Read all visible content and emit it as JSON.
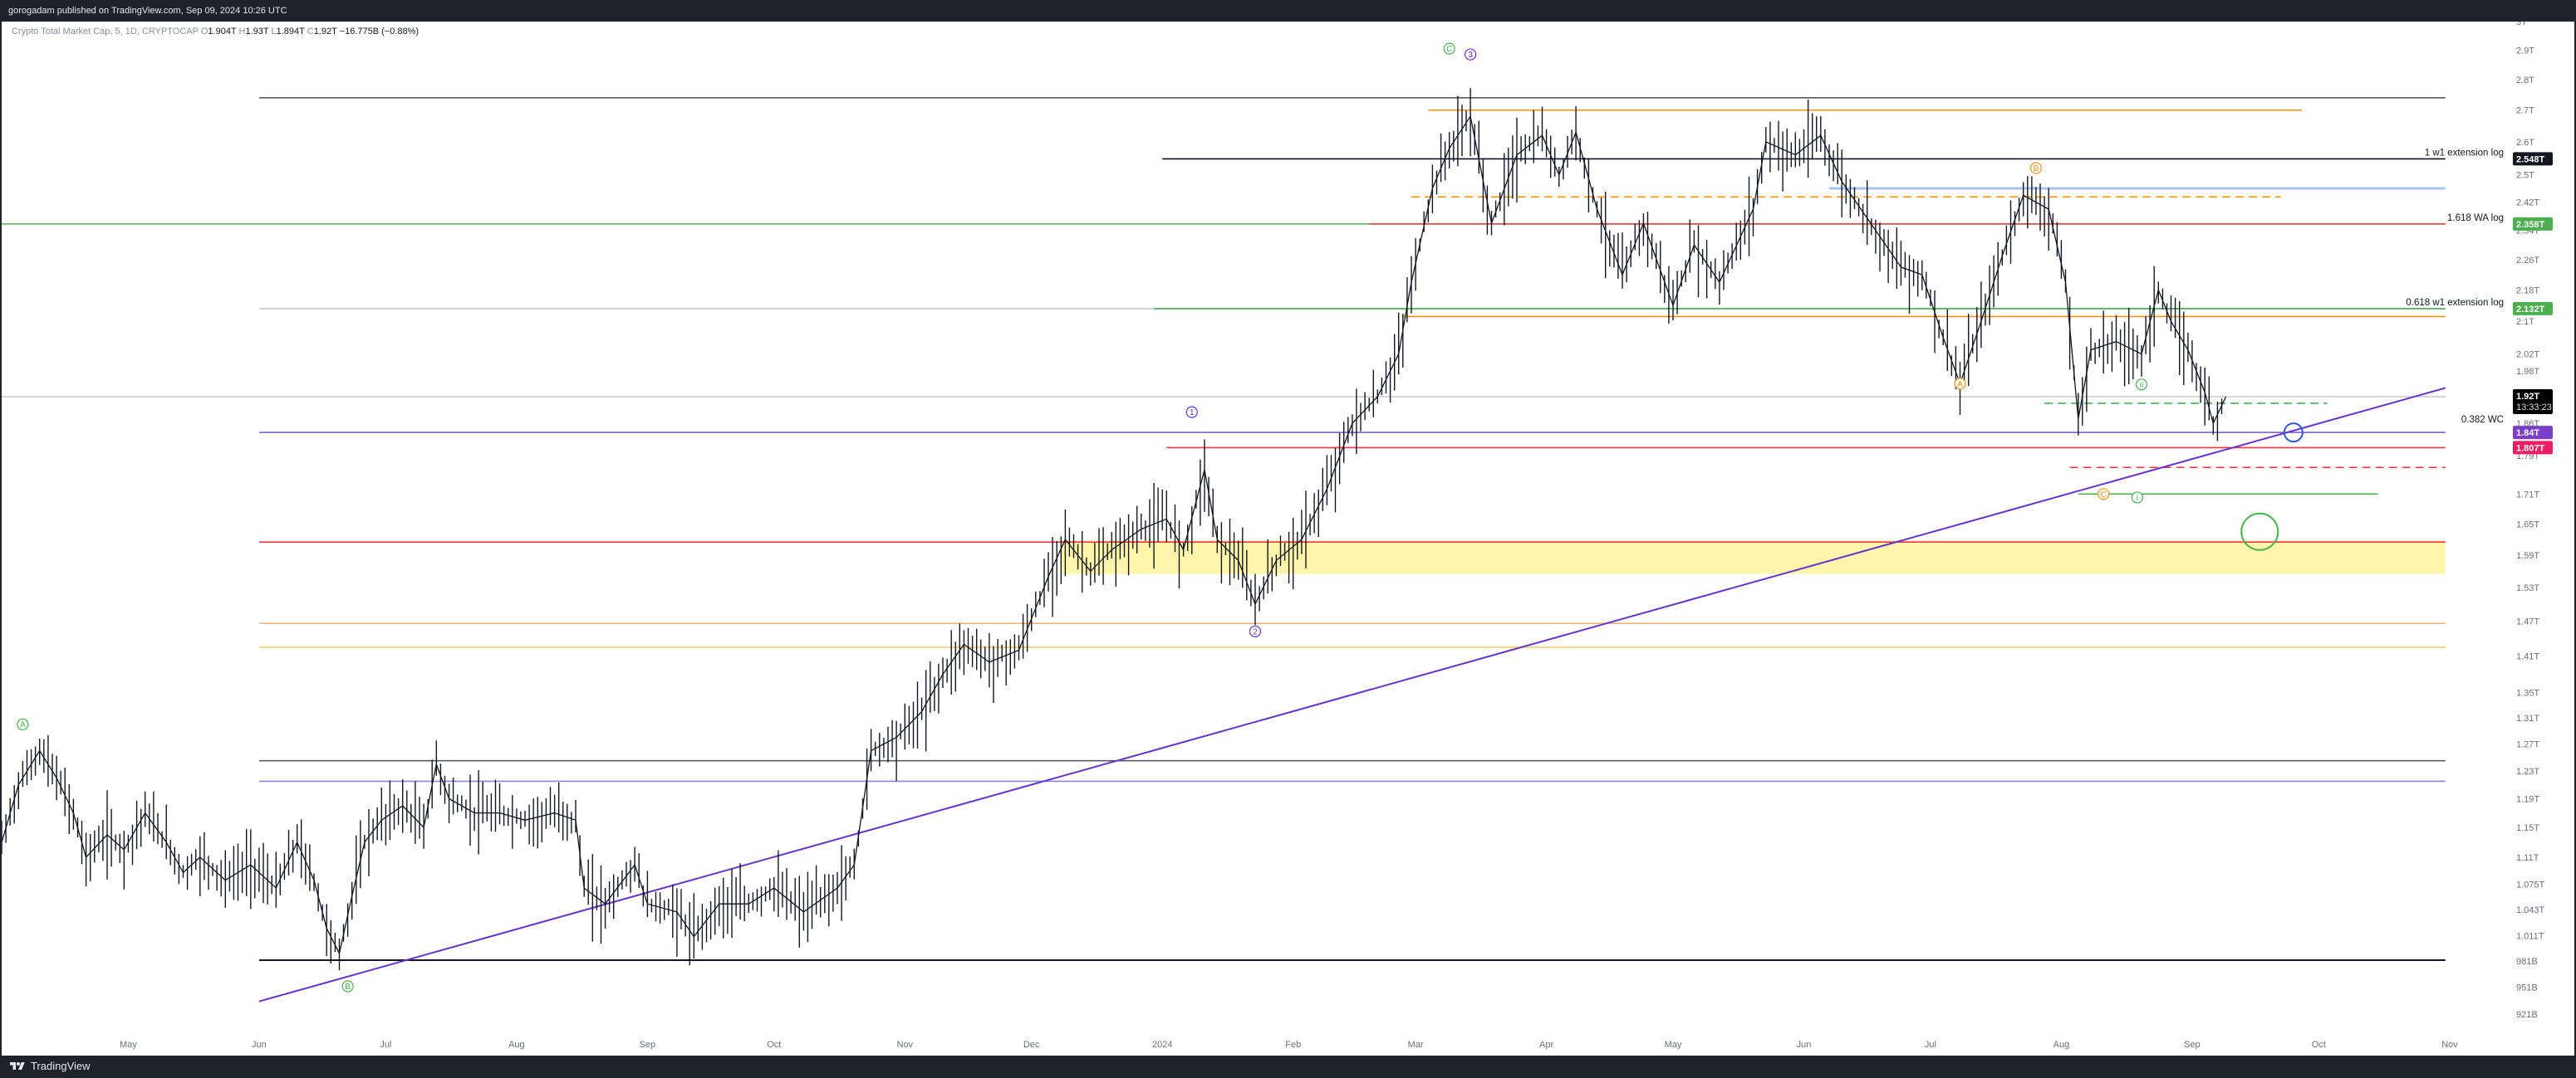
{
  "header": {
    "published_by": "gorogadam published on TradingView.com, Sep 09, 2024 10:26 UTC"
  },
  "legend": {
    "symbol": "Crypto Total Market Cap, 5, 1D, CRYPTOCAP",
    "open_label": "O",
    "open": "1.904T",
    "high_label": "H",
    "high": "1.93T",
    "low_label": "L",
    "low": "1.894T",
    "close_label": "C",
    "close": "1.92T",
    "change": "−16.775B (−0.88%)"
  },
  "footer": {
    "brand": "TradingView"
  },
  "chart_data": {
    "type": "line",
    "title": "",
    "y_scale": "log",
    "ylim": [
      0.895,
      3.0
    ],
    "xlim": [
      "2023-04-01",
      "2024-11-15"
    ],
    "grid": false,
    "price_axis_ticks": [
      "3T",
      "2.9T",
      "2.8T",
      "2.7T",
      "2.6T",
      "2.5T",
      "2.42T",
      "2.34T",
      "2.26T",
      "2.18T",
      "2.1T",
      "2.02T",
      "1.98T",
      "1.92T",
      "1.86T",
      "1.79T",
      "1.71T",
      "1.65T",
      "1.59T",
      "1.53T",
      "1.47T",
      "1.41T",
      "1.35T",
      "1.31T",
      "1.27T",
      "1.23T",
      "1.19T",
      "1.15T",
      "1.11T",
      "1.075T",
      "1.043T",
      "1.011T",
      "981B",
      "951B",
      "921B"
    ],
    "time_axis_ticks": [
      {
        "date": "2023-05-01",
        "label": "May"
      },
      {
        "date": "2023-06-01",
        "label": "Jun"
      },
      {
        "date": "2023-07-01",
        "label": "Jul"
      },
      {
        "date": "2023-08-01",
        "label": "Aug"
      },
      {
        "date": "2023-09-01",
        "label": "Sep"
      },
      {
        "date": "2023-10-01",
        "label": "Oct"
      },
      {
        "date": "2023-11-01",
        "label": "Nov"
      },
      {
        "date": "2023-12-01",
        "label": "Dec"
      },
      {
        "date": "2024-01-01",
        "label": "2024"
      },
      {
        "date": "2024-02-01",
        "label": "Feb"
      },
      {
        "date": "2024-03-01",
        "label": "Mar"
      },
      {
        "date": "2024-04-01",
        "label": "Apr"
      },
      {
        "date": "2024-05-01",
        "label": "May"
      },
      {
        "date": "2024-06-01",
        "label": "Jun"
      },
      {
        "date": "2024-07-01",
        "label": "Jul"
      },
      {
        "date": "2024-08-01",
        "label": "Aug"
      },
      {
        "date": "2024-09-01",
        "label": "Sep"
      },
      {
        "date": "2024-10-01",
        "label": "Oct"
      },
      {
        "date": "2024-11-01",
        "label": "Nov"
      }
    ],
    "series": [
      {
        "kind": "price",
        "color": "#131722",
        "points": [
          [
            "2023-04-01",
            1.13
          ],
          [
            "2023-04-05",
            1.21
          ],
          [
            "2023-04-10",
            1.26
          ],
          [
            "2023-04-14",
            1.22
          ],
          [
            "2023-04-18",
            1.17
          ],
          [
            "2023-04-21",
            1.11
          ],
          [
            "2023-04-26",
            1.14
          ],
          [
            "2023-04-30",
            1.12
          ],
          [
            "2023-05-05",
            1.17
          ],
          [
            "2023-05-10",
            1.13
          ],
          [
            "2023-05-14",
            1.09
          ],
          [
            "2023-05-18",
            1.11
          ],
          [
            "2023-05-24",
            1.08
          ],
          [
            "2023-05-30",
            1.1
          ],
          [
            "2023-06-05",
            1.07
          ],
          [
            "2023-06-10",
            1.13
          ],
          [
            "2023-06-14",
            1.08
          ],
          [
            "2023-06-17",
            1.02
          ],
          [
            "2023-06-20",
            0.99
          ],
          [
            "2023-06-23",
            1.06
          ],
          [
            "2023-06-26",
            1.13
          ],
          [
            "2023-06-30",
            1.16
          ],
          [
            "2023-07-05",
            1.18
          ],
          [
            "2023-07-10",
            1.15
          ],
          [
            "2023-07-13",
            1.24
          ],
          [
            "2023-07-16",
            1.19
          ],
          [
            "2023-07-22",
            1.17
          ],
          [
            "2023-07-28",
            1.17
          ],
          [
            "2023-08-03",
            1.16
          ],
          [
            "2023-08-10",
            1.17
          ],
          [
            "2023-08-15",
            1.16
          ],
          [
            "2023-08-17",
            1.07
          ],
          [
            "2023-08-22",
            1.05
          ],
          [
            "2023-08-29",
            1.1
          ],
          [
            "2023-09-01",
            1.05
          ],
          [
            "2023-09-08",
            1.04
          ],
          [
            "2023-09-12",
            1.01
          ],
          [
            "2023-09-18",
            1.05
          ],
          [
            "2023-09-25",
            1.05
          ],
          [
            "2023-10-01",
            1.07
          ],
          [
            "2023-10-08",
            1.04
          ],
          [
            "2023-10-16",
            1.07
          ],
          [
            "2023-10-20",
            1.1
          ],
          [
            "2023-10-24",
            1.26
          ],
          [
            "2023-10-30",
            1.28
          ],
          [
            "2023-11-05",
            1.32
          ],
          [
            "2023-11-10",
            1.38
          ],
          [
            "2023-11-15",
            1.43
          ],
          [
            "2023-11-21",
            1.4
          ],
          [
            "2023-11-28",
            1.42
          ],
          [
            "2023-12-05",
            1.55
          ],
          [
            "2023-12-09",
            1.62
          ],
          [
            "2023-12-15",
            1.56
          ],
          [
            "2023-12-20",
            1.6
          ],
          [
            "2023-12-27",
            1.64
          ],
          [
            "2024-01-02",
            1.66
          ],
          [
            "2024-01-06",
            1.6
          ],
          [
            "2024-01-11",
            1.76
          ],
          [
            "2024-01-14",
            1.62
          ],
          [
            "2024-01-19",
            1.58
          ],
          [
            "2024-01-23",
            1.5
          ],
          [
            "2024-01-28",
            1.58
          ],
          [
            "2024-02-03",
            1.62
          ],
          [
            "2024-02-09",
            1.72
          ],
          [
            "2024-02-15",
            1.86
          ],
          [
            "2024-02-21",
            1.92
          ],
          [
            "2024-02-26",
            2.02
          ],
          [
            "2024-02-29",
            2.2
          ],
          [
            "2024-03-05",
            2.46
          ],
          [
            "2024-03-09",
            2.58
          ],
          [
            "2024-03-14",
            2.68
          ],
          [
            "2024-03-19",
            2.36
          ],
          [
            "2024-03-25",
            2.56
          ],
          [
            "2024-03-31",
            2.62
          ],
          [
            "2024-04-04",
            2.5
          ],
          [
            "2024-04-08",
            2.63
          ],
          [
            "2024-04-13",
            2.4
          ],
          [
            "2024-04-19",
            2.22
          ],
          [
            "2024-04-24",
            2.36
          ],
          [
            "2024-05-01",
            2.14
          ],
          [
            "2024-05-06",
            2.3
          ],
          [
            "2024-05-12",
            2.2
          ],
          [
            "2024-05-20",
            2.4
          ],
          [
            "2024-05-23",
            2.6
          ],
          [
            "2024-05-30",
            2.56
          ],
          [
            "2024-06-05",
            2.62
          ],
          [
            "2024-06-10",
            2.48
          ],
          [
            "2024-06-18",
            2.34
          ],
          [
            "2024-06-24",
            2.24
          ],
          [
            "2024-06-29",
            2.22
          ],
          [
            "2024-07-04",
            2.06
          ],
          [
            "2024-07-08",
            1.95
          ],
          [
            "2024-07-13",
            2.1
          ],
          [
            "2024-07-18",
            2.27
          ],
          [
            "2024-07-23",
            2.44
          ],
          [
            "2024-07-29",
            2.4
          ],
          [
            "2024-08-02",
            2.2
          ],
          [
            "2024-08-05",
            1.87
          ],
          [
            "2024-08-08",
            2.03
          ],
          [
            "2024-08-14",
            2.05
          ],
          [
            "2024-08-20",
            2.02
          ],
          [
            "2024-08-24",
            2.18
          ],
          [
            "2024-08-27",
            2.1
          ],
          [
            "2024-08-31",
            2.03
          ],
          [
            "2024-09-04",
            1.93
          ],
          [
            "2024-09-06",
            1.86
          ],
          [
            "2024-09-09",
            1.92
          ]
        ]
      },
      {
        "kind": "trend",
        "color": "#6633cc",
        "points": [
          [
            "2023-06-01",
            0.935
          ],
          [
            "2024-10-31",
            1.94
          ]
        ]
      }
    ],
    "levels": [
      {
        "price": 2.74,
        "start": "2023-06-01",
        "end": "2024-10-31",
        "color": "#555b66"
      },
      {
        "price": 2.7,
        "start": "2024-03-04",
        "end": "2024-09-27",
        "color": "#f7931a"
      },
      {
        "price": 2.548,
        "start": "2024-01-01",
        "end": "2024-10-31",
        "color": "#131722"
      },
      {
        "price": 2.435,
        "start": "2024-02-29",
        "end": "2024-09-22",
        "color": "#f7931a",
        "dash": true
      },
      {
        "price": 2.46,
        "start": "2024-06-07",
        "end": "2024-10-31",
        "color": "#a9c0f0",
        "width": 3
      },
      {
        "price": 2.358,
        "start": "2023-04-01",
        "end": "2024-10-31",
        "color": "#4caf50"
      },
      {
        "price": 2.358,
        "start": "2024-02-19",
        "end": "2024-10-31",
        "color": "#f23645"
      },
      {
        "price": 2.132,
        "start": "2023-06-01",
        "end": "2024-10-31",
        "color": "#c5c8ce"
      },
      {
        "price": 2.132,
        "start": "2023-12-30",
        "end": "2024-10-31",
        "color": "#4caf50"
      },
      {
        "price": 2.112,
        "start": "2024-02-27",
        "end": "2024-10-31",
        "color": "#f7931a"
      },
      {
        "price": 1.92,
        "start": "2023-04-01",
        "end": "2024-10-31",
        "color": "#c5c8ce"
      },
      {
        "price": 1.905,
        "start": "2024-07-28",
        "end": "2024-10-03",
        "color": "#4caf50",
        "dash": true
      },
      {
        "price": 1.84,
        "start": "2023-06-01",
        "end": "2024-10-31",
        "color": "#7b61c9"
      },
      {
        "price": 1.807,
        "start": "2024-01-02",
        "end": "2024-10-31",
        "color": "#f23645"
      },
      {
        "price": 1.765,
        "start": "2024-08-03",
        "end": "2024-10-31",
        "color": "#f23645",
        "dash": true
      },
      {
        "price": 1.71,
        "start": "2024-08-05",
        "end": "2024-10-15",
        "color": "#4caf50"
      },
      {
        "price": 1.615,
        "start": "2023-06-01",
        "end": "2024-10-31",
        "color": "#f23645"
      },
      {
        "price": 1.466,
        "start": "2023-06-01",
        "end": "2024-10-31",
        "color": "#f0b27a"
      },
      {
        "price": 1.425,
        "start": "2023-06-01",
        "end": "2024-10-31",
        "color": "#f5d061"
      },
      {
        "price": 1.245,
        "start": "2023-06-01",
        "end": "2024-10-31",
        "color": "#555b66"
      },
      {
        "price": 1.215,
        "start": "2023-06-01",
        "end": "2024-10-31",
        "color": "#8f86d0"
      },
      {
        "price": 0.982,
        "start": "2023-06-01",
        "end": "2024-10-31",
        "color": "#131722",
        "width": 2
      }
    ],
    "zones": [
      {
        "low": 1.555,
        "high": 1.618,
        "start": "2023-12-08",
        "end": "2024-10-31",
        "color": "#fff59d"
      }
    ],
    "level_labels": [
      {
        "text": "1 w1 extension log",
        "price": 2.548
      },
      {
        "text": "1.618 WA log",
        "price": 2.358
      },
      {
        "text": "0.618 w1 extension log",
        "price": 2.132
      },
      {
        "text": "0.382 WC",
        "price": 1.855
      }
    ],
    "price_tags": [
      {
        "text": "2.548T",
        "price": 2.548,
        "color": "#131722"
      },
      {
        "text": "2.358T",
        "price": 2.358,
        "color": "#4caf50"
      },
      {
        "text": "2.132T",
        "price": 2.132,
        "color": "#4caf50"
      },
      {
        "text": "1.92T",
        "price": 1.92,
        "color": "#000000",
        "sub": "13:33:23"
      },
      {
        "text": "1.84T",
        "price": 1.84,
        "color": "#7b3fc8"
      },
      {
        "text": "1.807T",
        "price": 1.807,
        "color": "#e91e63"
      }
    ],
    "wave_labels": [
      {
        "text": "A",
        "date": "2023-04-06",
        "price": 1.3,
        "color": "#4caf50"
      },
      {
        "text": "B",
        "date": "2023-06-22",
        "price": 0.952,
        "color": "#4caf50"
      },
      {
        "text": "C",
        "date": "2024-03-09",
        "price": 2.905,
        "color": "#4caf50"
      },
      {
        "text": "3",
        "date": "2024-03-14",
        "price": 2.885,
        "color": "#6633cc"
      },
      {
        "text": "1",
        "date": "2024-01-08",
        "price": 1.885,
        "color": "#6633cc"
      },
      {
        "text": "2",
        "date": "2024-01-23",
        "price": 1.452,
        "color": "#6633cc"
      },
      {
        "text": "B",
        "date": "2024-07-26",
        "price": 2.52,
        "color": "#f7931a"
      },
      {
        "text": "A",
        "date": "2024-07-08",
        "price": 1.95,
        "color": "#f7931a"
      },
      {
        "text": "C",
        "date": "2024-08-11",
        "price": 1.71,
        "color": "#f7931a"
      },
      {
        "text": "i",
        "date": "2024-08-19",
        "price": 1.703,
        "color": "#4caf50"
      },
      {
        "text": "ii",
        "date": "2024-08-20",
        "price": 1.948,
        "color": "#4caf50"
      }
    ],
    "circles": [
      {
        "date": "2024-09-25",
        "price": 1.84,
        "r": 11,
        "color": "#3355dd"
      },
      {
        "date": "2024-09-17",
        "price": 1.635,
        "r": 22,
        "color": "#4caf50"
      }
    ]
  }
}
